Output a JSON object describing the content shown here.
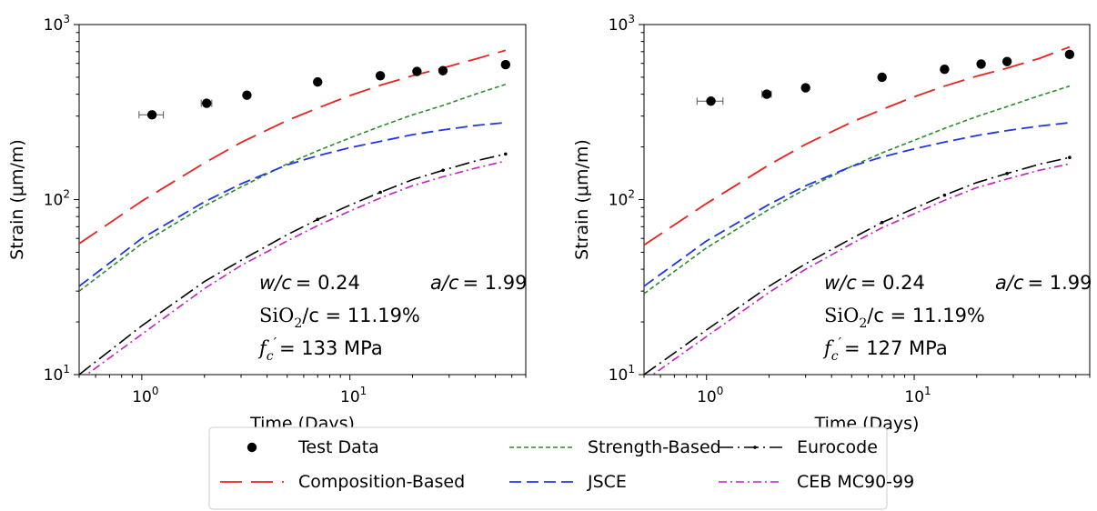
{
  "chart_data": [
    {
      "type": "line",
      "xlabel": "Time (Days)",
      "ylabel": "Strain (μm/m)",
      "xscale": "log",
      "yscale": "log",
      "xlim": [
        0.5,
        70
      ],
      "ylim": [
        10,
        1000
      ],
      "grid": false,
      "x_ticks": [
        1,
        10
      ],
      "x_tick_labels": [
        "10^0",
        "10^1"
      ],
      "y_ticks": [
        10,
        100,
        1000
      ],
      "y_tick_labels": [
        "10^1",
        "10^2",
        "10^3"
      ],
      "annotations": [
        {
          "label": "w/c",
          "value": "= 0.24"
        },
        {
          "label": "a/c",
          "value": "= 1.99"
        },
        {
          "label": "SiO2/c",
          "value": "= 11.19%"
        },
        {
          "label": "f'c",
          "value": "= 133 MPa"
        }
      ],
      "test_data": {
        "x": [
          1.12,
          2.05,
          3.2,
          7.0,
          14.0,
          21.0,
          28.0,
          56.0
        ],
        "y": [
          305,
          355,
          395,
          470,
          510,
          540,
          545,
          590
        ],
        "xerr": [
          0.15,
          0.12,
          0,
          0,
          0,
          0,
          0,
          0
        ]
      },
      "series": [
        {
          "name": "Composition-Based",
          "x": [
            0.5,
            1,
            2,
            3,
            5,
            7,
            10,
            14,
            20,
            28,
            40,
            56
          ],
          "y": [
            56,
            98,
            162,
            212,
            283,
            333,
            393,
            450,
            510,
            565,
            635,
            712
          ]
        },
        {
          "name": "Strength-Based",
          "x": [
            0.5,
            1,
            2,
            3,
            5,
            7,
            10,
            14,
            20,
            28,
            40,
            56
          ],
          "y": [
            30,
            56,
            92,
            118,
            160,
            190,
            225,
            262,
            305,
            345,
            400,
            455
          ]
        },
        {
          "name": "JSCE",
          "x": [
            0.5,
            1,
            2,
            3,
            5,
            7,
            10,
            14,
            20,
            28,
            40,
            56
          ],
          "y": [
            32,
            60,
            97,
            123,
            158,
            178,
            198,
            215,
            235,
            250,
            265,
            275
          ]
        },
        {
          "name": "Eurocode",
          "x": [
            0.5,
            1,
            2,
            3,
            5,
            7,
            10,
            14,
            20,
            28,
            40,
            56
          ],
          "y": [
            10,
            19,
            34,
            45,
            63,
            77,
            93,
            110,
            130,
            147,
            166,
            182
          ]
        },
        {
          "name": "CEB MC90-99",
          "x": [
            0.5,
            1,
            2,
            3,
            5,
            7,
            10,
            14,
            20,
            28,
            40,
            56
          ],
          "y": [
            9.3,
            17,
            31,
            42,
            58,
            71,
            86,
            102,
            120,
            135,
            151,
            166
          ]
        }
      ]
    },
    {
      "type": "line",
      "xlabel": "Time (Days)",
      "ylabel": "Strain (μm/m)",
      "xscale": "log",
      "yscale": "log",
      "xlim": [
        0.5,
        70
      ],
      "ylim": [
        10,
        1000
      ],
      "grid": false,
      "x_ticks": [
        1,
        10
      ],
      "x_tick_labels": [
        "10^0",
        "10^1"
      ],
      "y_ticks": [
        10,
        100,
        1000
      ],
      "y_tick_labels": [
        "10^1",
        "10^2",
        "10^3"
      ],
      "annotations": [
        {
          "label": "w/c",
          "value": "= 0.24"
        },
        {
          "label": "a/c",
          "value": "= 1.99"
        },
        {
          "label": "SiO2/c",
          "value": "= 11.19%"
        },
        {
          "label": "f'c",
          "value": "= 127 MPa"
        }
      ],
      "test_data": {
        "x": [
          1.05,
          1.95,
          3.0,
          7.0,
          14.0,
          21.0,
          28.0,
          56.0
        ],
        "y": [
          365,
          400,
          435,
          500,
          555,
          595,
          615,
          675
        ],
        "xerr": [
          0.15,
          0.1,
          0,
          0,
          0,
          0,
          0,
          0
        ]
      },
      "series": [
        {
          "name": "Composition-Based",
          "x": [
            0.5,
            1,
            2,
            3,
            5,
            7,
            10,
            14,
            20,
            28,
            40,
            56
          ],
          "y": [
            55,
            95,
            158,
            207,
            277,
            327,
            387,
            445,
            507,
            563,
            640,
            745
          ]
        },
        {
          "name": "Strength-Based",
          "x": [
            0.5,
            1,
            2,
            3,
            5,
            7,
            10,
            14,
            20,
            28,
            40,
            56
          ],
          "y": [
            29,
            53,
            88,
            115,
            155,
            185,
            218,
            255,
            298,
            340,
            392,
            445
          ]
        },
        {
          "name": "JSCE",
          "x": [
            0.5,
            1,
            2,
            3,
            5,
            7,
            10,
            14,
            20,
            28,
            40,
            56
          ],
          "y": [
            32,
            58,
            94,
            120,
            155,
            175,
            195,
            213,
            232,
            248,
            263,
            275
          ]
        },
        {
          "name": "Eurocode",
          "x": [
            0.5,
            1,
            2,
            3,
            5,
            7,
            10,
            14,
            20,
            28,
            40,
            56
          ],
          "y": [
            10,
            18,
            32,
            43,
            60,
            74,
            89,
            106,
            125,
            141,
            159,
            174
          ]
        },
        {
          "name": "CEB MC90-99",
          "x": [
            0.5,
            1,
            2,
            3,
            5,
            7,
            10,
            14,
            20,
            28,
            40,
            56
          ],
          "y": [
            9.2,
            16.5,
            29.5,
            40,
            56,
            69,
            83,
            99,
            117,
            131,
            147,
            160
          ]
        }
      ]
    }
  ],
  "legend": {
    "placement": "bottom-center",
    "entries": [
      {
        "label": "Test Data",
        "style": "marker",
        "color": "#000000"
      },
      {
        "label": "Composition-Based",
        "style": "longdash",
        "color": "#e8231f"
      },
      {
        "label": "Strength-Based",
        "style": "shortdash",
        "color": "#2c8c2c"
      },
      {
        "label": "JSCE",
        "style": "dash",
        "color": "#2135e0"
      },
      {
        "label": "Eurocode",
        "style": "dashdot-marker",
        "color": "#000000"
      },
      {
        "label": "CEB MC90-99",
        "style": "dashdot",
        "color": "#c21fc2"
      }
    ]
  },
  "colors": {
    "Composition-Based": "#e8231f",
    "Strength-Based": "#2c8c2c",
    "JSCE": "#2135e0",
    "Eurocode": "#000000",
    "CEB MC90-99": "#c21fc2",
    "Test Data": "#000000"
  }
}
